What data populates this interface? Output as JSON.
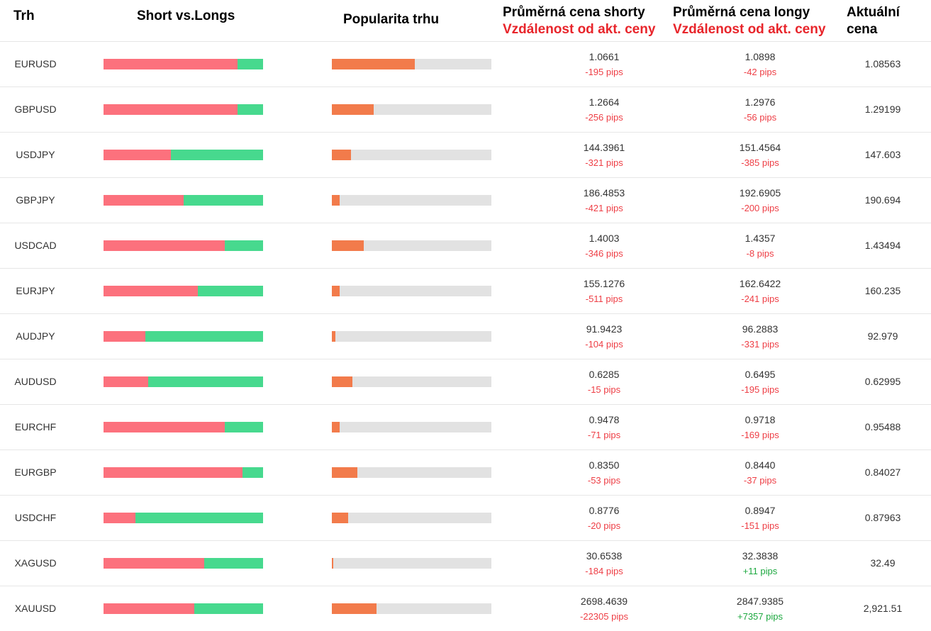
{
  "header": {
    "market": "Trh",
    "short_vs_long": "Short vs.Longs",
    "popularity": "Popularita trhu",
    "avg_short_title": "Průměrná cena shorty",
    "avg_short_sub": "Vzdálenost od akt. ceny",
    "avg_long_title": "Průměrná cena longy",
    "avg_long_sub": "Vzdálenost od akt. ceny",
    "current_title_1": "Aktuální",
    "current_title_2": "cena"
  },
  "colors": {
    "short": "#fc717d",
    "long": "#47d98e",
    "popularity": "#f27b4b",
    "track": "#e2e2e2",
    "negative": "#ee3e45",
    "positive": "#1ca83f"
  },
  "rows": [
    {
      "market": "EURUSD",
      "short_ratio": 0.84,
      "popularity": 0.52,
      "avg_short": "1.0661",
      "short_pips": "-195 pips",
      "avg_long": "1.0898",
      "long_pips": "-42 pips",
      "current": "1.08563"
    },
    {
      "market": "GBPUSD",
      "short_ratio": 0.84,
      "popularity": 0.26,
      "avg_short": "1.2664",
      "short_pips": "-256 pips",
      "avg_long": "1.2976",
      "long_pips": "-56 pips",
      "current": "1.29199"
    },
    {
      "market": "USDJPY",
      "short_ratio": 0.42,
      "popularity": 0.12,
      "avg_short": "144.3961",
      "short_pips": "-321 pips",
      "avg_long": "151.4564",
      "long_pips": "-385 pips",
      "current": "147.603"
    },
    {
      "market": "GBPJPY",
      "short_ratio": 0.5,
      "popularity": 0.05,
      "avg_short": "186.4853",
      "short_pips": "-421 pips",
      "avg_long": "192.6905",
      "long_pips": "-200 pips",
      "current": "190.694"
    },
    {
      "market": "USDCAD",
      "short_ratio": 0.76,
      "popularity": 0.2,
      "avg_short": "1.4003",
      "short_pips": "-346 pips",
      "avg_long": "1.4357",
      "long_pips": "-8 pips",
      "current": "1.43494"
    },
    {
      "market": "EURJPY",
      "short_ratio": 0.59,
      "popularity": 0.05,
      "avg_short": "155.1276",
      "short_pips": "-511 pips",
      "avg_long": "162.6422",
      "long_pips": "-241 pips",
      "current": "160.235"
    },
    {
      "market": "AUDJPY",
      "short_ratio": 0.26,
      "popularity": 0.02,
      "avg_short": "91.9423",
      "short_pips": "-104 pips",
      "avg_long": "96.2883",
      "long_pips": "-331 pips",
      "current": "92.979"
    },
    {
      "market": "AUDUSD",
      "short_ratio": 0.28,
      "popularity": 0.13,
      "avg_short": "0.6285",
      "short_pips": "-15 pips",
      "avg_long": "0.6495",
      "long_pips": "-195 pips",
      "current": "0.62995"
    },
    {
      "market": "EURCHF",
      "short_ratio": 0.76,
      "popularity": 0.05,
      "avg_short": "0.9478",
      "short_pips": "-71 pips",
      "avg_long": "0.9718",
      "long_pips": "-169 pips",
      "current": "0.95488"
    },
    {
      "market": "EURGBP",
      "short_ratio": 0.87,
      "popularity": 0.16,
      "avg_short": "0.8350",
      "short_pips": "-53 pips",
      "avg_long": "0.8440",
      "long_pips": "-37 pips",
      "current": "0.84027"
    },
    {
      "market": "USDCHF",
      "short_ratio": 0.2,
      "popularity": 0.1,
      "avg_short": "0.8776",
      "short_pips": "-20 pips",
      "avg_long": "0.8947",
      "long_pips": "-151 pips",
      "current": "0.87963"
    },
    {
      "market": "XAGUSD",
      "short_ratio": 0.63,
      "popularity": 0.01,
      "avg_short": "30.6538",
      "short_pips": "-184 pips",
      "avg_long": "32.3838",
      "long_pips": "+11 pips",
      "current": "32.49"
    },
    {
      "market": "XAUUSD",
      "short_ratio": 0.57,
      "popularity": 0.28,
      "avg_short": "2698.4639",
      "short_pips": "-22305 pips",
      "avg_long": "2847.9385",
      "long_pips": "+7357 pips",
      "current": "2,921.51"
    }
  ]
}
